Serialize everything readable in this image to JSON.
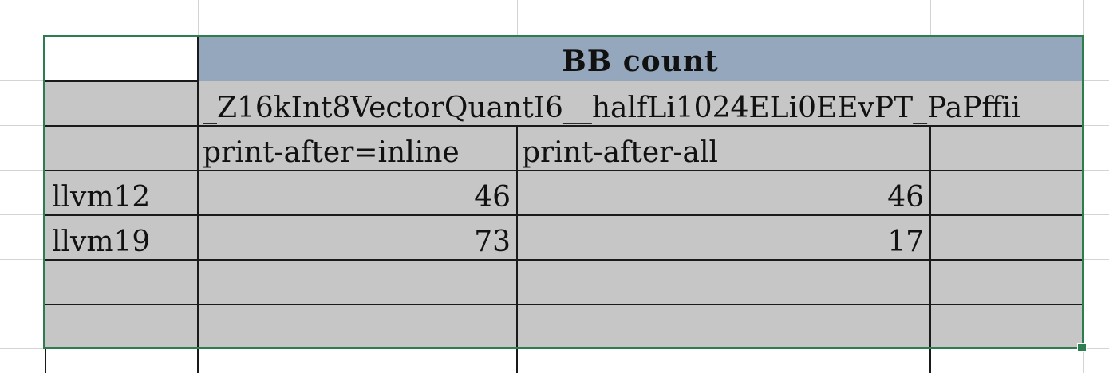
{
  "sheet": {
    "header": "BB count",
    "function_name": "_Z16kInt8VectorQuantI6__halfLi1024ELi0EEvPT_PaPffii",
    "columns": [
      "print-after=inline",
      "print-after-all"
    ],
    "rows": [
      {
        "label": "llvm12",
        "values": [
          "46",
          "46"
        ]
      },
      {
        "label": "llvm19",
        "values": [
          "73",
          "17"
        ]
      }
    ]
  },
  "colors": {
    "header_fill": "#94a7bc",
    "cell_fill": "#c6c6c6",
    "selection_border": "#2e7d4e"
  }
}
